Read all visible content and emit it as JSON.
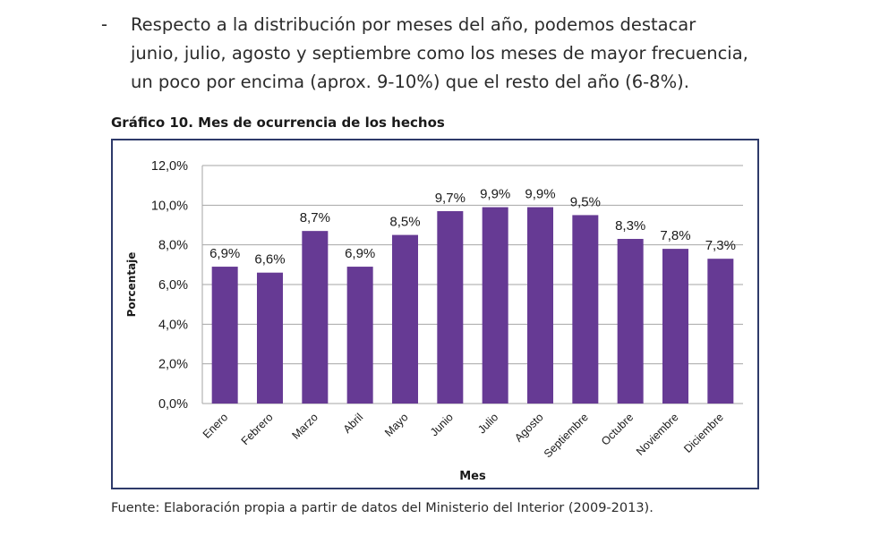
{
  "intro": {
    "bullet": "-",
    "lines": [
      "Respecto a la distribución por meses del año, podemos destacar",
      "junio, julio, agosto y septiembre como los meses de mayor frecuencia,",
      "un poco por encima (aprox. 9-10%) que el resto del año (6-8%)."
    ]
  },
  "figure_caption": "Gráfico 10. Mes de ocurrencia de los hechos",
  "source_note": "Fuente: Elaboración propia a partir de datos del Ministerio del Interior (2009-2013).",
  "colors": {
    "bar": "#663a94",
    "grid": "#a6a6a6",
    "frame": "#2e3a6a"
  },
  "chart_data": {
    "type": "bar",
    "title": "",
    "xlabel": "Mes",
    "ylabel": "Porcentaje",
    "ylim": [
      0,
      12
    ],
    "yticks": [
      0,
      2,
      4,
      6,
      8,
      10,
      12
    ],
    "ytick_labels": [
      "0,0%",
      "2,0%",
      "4,0%",
      "6,0%",
      "8,0%",
      "10,0%",
      "12,0%"
    ],
    "categories": [
      "Enero",
      "Febrero",
      "Marzo",
      "Abril",
      "Mayo",
      "Junio",
      "Julio",
      "Agosto",
      "Septiembre",
      "Octubre",
      "Noviembre",
      "Diciembre"
    ],
    "values": [
      6.9,
      6.6,
      8.7,
      6.9,
      8.5,
      9.7,
      9.9,
      9.9,
      9.5,
      8.3,
      7.8,
      7.3
    ],
    "value_labels": [
      "6,9%",
      "6,6%",
      "8,7%",
      "6,9%",
      "8,5%",
      "9,7%",
      "9,9%",
      "9,9%",
      "9,5%",
      "8,3%",
      "7,8%",
      "7,3%"
    ],
    "grid": true
  }
}
